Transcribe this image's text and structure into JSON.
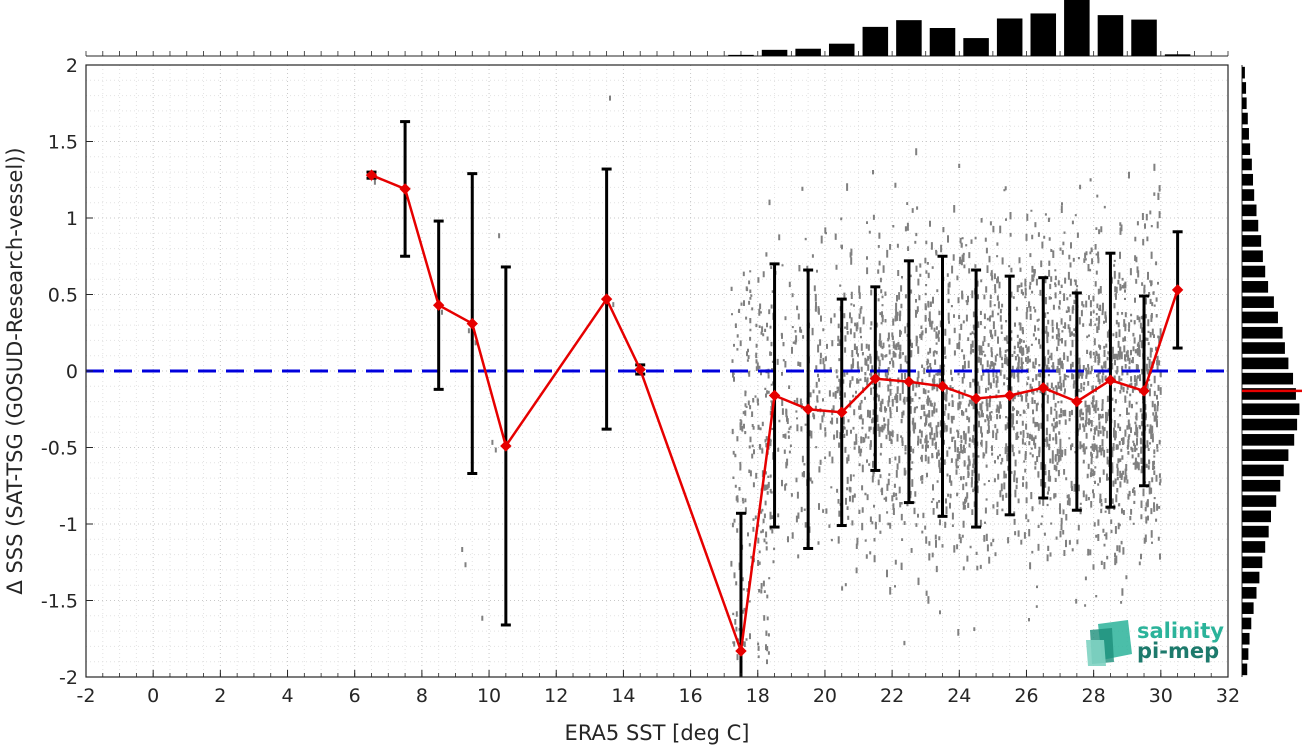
{
  "chart_data": {
    "type": "scatter",
    "xlabel": "ERA5 SST [deg C]",
    "ylabel": "Δ SSS (SAT-TSG (GOSUD-Research-vessel))",
    "xlim": [
      -2,
      32
    ],
    "ylim": [
      -2,
      2
    ],
    "xticks": [
      "-2",
      "0",
      "2",
      "4",
      "6",
      "8",
      "10",
      "12",
      "14",
      "16",
      "18",
      "20",
      "22",
      "24",
      "26",
      "28",
      "30",
      "32"
    ],
    "yticks": [
      "2",
      "1.5",
      "1",
      "0.5",
      "0",
      "-0.5",
      "-1",
      "-1.5",
      "-2"
    ],
    "grid": true,
    "zero_line": {
      "y": 0,
      "color": "#0000dd",
      "style": "dashed"
    },
    "binned_mean": {
      "color": "#e60000",
      "x": [
        6.5,
        7.5,
        8.5,
        9.5,
        10.5,
        13.5,
        14.5,
        17.5,
        18.5,
        19.5,
        20.5,
        21.5,
        22.5,
        23.5,
        24.5,
        25.5,
        26.5,
        27.5,
        28.5,
        29.5,
        30.5
      ],
      "y": [
        1.28,
        1.19,
        0.43,
        0.31,
        -0.49,
        0.47,
        0.01,
        -1.83,
        -0.16,
        -0.25,
        -0.27,
        -0.05,
        -0.07,
        -0.1,
        -0.18,
        -0.16,
        -0.11,
        -0.2,
        -0.06,
        -0.13,
        0.53
      ],
      "err": [
        0.02,
        0.44,
        0.55,
        0.98,
        1.17,
        0.85,
        0.03,
        0.9,
        0.86,
        0.91,
        0.74,
        0.6,
        0.79,
        0.85,
        0.84,
        0.78,
        0.72,
        0.71,
        0.83,
        0.62,
        0.38
      ]
    },
    "scatter_cloud": {
      "color": "#808080",
      "note_density": "dense between 18 and 30 deg C"
    },
    "x_histogram": {
      "bins": [
        17.5,
        18.5,
        19.5,
        20.5,
        21.5,
        22.5,
        23.5,
        24.5,
        25.5,
        26.5,
        27.5,
        28.5,
        29.5,
        30.5
      ],
      "values": [
        0.02,
        0.11,
        0.13,
        0.22,
        0.52,
        0.64,
        0.5,
        0.32,
        0.67,
        0.76,
        1.0,
        0.73,
        0.65,
        0.03
      ]
    },
    "y_histogram": {
      "bins": [
        1.95,
        1.85,
        1.75,
        1.65,
        1.55,
        1.45,
        1.35,
        1.25,
        1.15,
        1.05,
        0.95,
        0.85,
        0.75,
        0.65,
        0.55,
        0.45,
        0.35,
        0.25,
        0.15,
        0.05,
        -0.05,
        -0.15,
        -0.25,
        -0.35,
        -0.45,
        -0.55,
        -0.65,
        -0.75,
        -0.85,
        -0.95,
        -1.05,
        -1.15,
        -1.25,
        -1.35,
        -1.45,
        -1.55,
        -1.65,
        -1.75,
        -1.85,
        -1.95
      ],
      "values": [
        0.05,
        0.07,
        0.08,
        0.1,
        0.12,
        0.14,
        0.17,
        0.19,
        0.21,
        0.25,
        0.28,
        0.33,
        0.36,
        0.4,
        0.45,
        0.55,
        0.62,
        0.7,
        0.74,
        0.8,
        0.88,
        0.93,
        0.99,
        0.95,
        0.9,
        0.8,
        0.72,
        0.66,
        0.59,
        0.5,
        0.46,
        0.4,
        0.35,
        0.3,
        0.25,
        0.2,
        0.16,
        0.13,
        0.11,
        0.09
      ],
      "mean": -0.13,
      "mean_color": "#e60000"
    }
  },
  "logo": {
    "line1": "salinity",
    "line2": "pi-mep",
    "color1": "#2bb39a",
    "color2": "#1d7a6c"
  }
}
